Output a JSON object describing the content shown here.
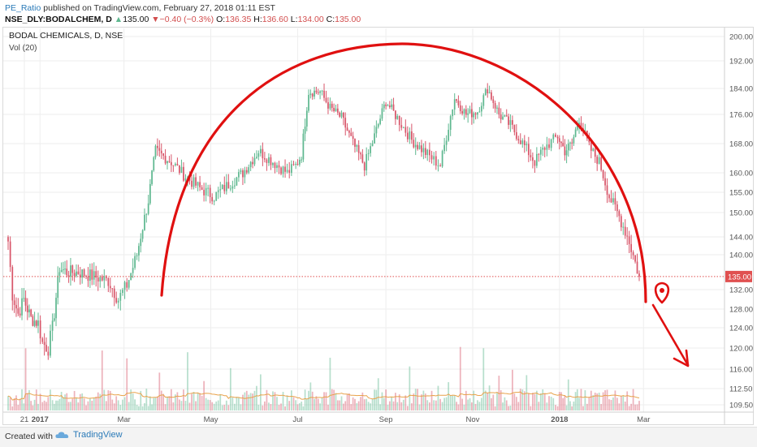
{
  "header": {
    "author": "PE_Ratio",
    "published_text": "published on TradingView.com, February 27, 2018 01:11 EST",
    "symbol": "NSE_DLY:BODALCHEM, D",
    "last": "135.00",
    "change": "−0.40 (−0.3%)",
    "o_label": "O:",
    "o_value": "136.35",
    "h_label": "H:",
    "h_value": "136.60",
    "l_label": "L:",
    "l_value": "134.00",
    "c_label": "C:",
    "c_value": "135.00"
  },
  "footer": {
    "created_with": "Created with",
    "brand": "TradingView"
  },
  "colors": {
    "up": "#5fb890",
    "down": "#d8566a",
    "annotation": "#e01010",
    "price_line": "#e05050",
    "vol_ma": "#e8a24a"
  },
  "chart_data": {
    "type": "candlestick",
    "title": "BODAL CHEMICALS, D, NSE",
    "volume_label": "Vol (20)",
    "y_ticks": [
      "200.00",
      "192.00",
      "184.00",
      "176.00",
      "168.00",
      "160.00",
      "155.00",
      "150.00",
      "144.00",
      "140.00",
      "132.00",
      "128.00",
      "124.00",
      "120.00",
      "116.00",
      "112.50",
      "109.50"
    ],
    "x_ticks": [
      "21",
      "2017",
      "Mar",
      "May",
      "Jul",
      "Sep",
      "Nov",
      "2018",
      "Mar"
    ],
    "last_price_label": "135.00",
    "last_price": 135.0,
    "price_path": [
      [
        "2016-12-12",
        143
      ],
      [
        "2016-12-15",
        131
      ],
      [
        "2016-12-19",
        127
      ],
      [
        "2016-12-23",
        130
      ],
      [
        "2016-12-28",
        126
      ],
      [
        "2017-01-02",
        125
      ],
      [
        "2017-01-05",
        121
      ],
      [
        "2017-01-09",
        120
      ],
      [
        "2017-01-12",
        124
      ],
      [
        "2017-01-17",
        137
      ],
      [
        "2017-01-22",
        136
      ],
      [
        "2017-01-30",
        136
      ],
      [
        "2017-02-10",
        135
      ],
      [
        "2017-02-20",
        134
      ],
      [
        "2017-02-27",
        130
      ],
      [
        "2017-03-05",
        133
      ],
      [
        "2017-03-12",
        140
      ],
      [
        "2017-03-20",
        153
      ],
      [
        "2017-03-25",
        166
      ],
      [
        "2017-04-05",
        163
      ],
      [
        "2017-04-15",
        159
      ],
      [
        "2017-04-25",
        156
      ],
      [
        "2017-05-05",
        154
      ],
      [
        "2017-05-15",
        157
      ],
      [
        "2017-05-25",
        160
      ],
      [
        "2017-06-05",
        166
      ],
      [
        "2017-06-15",
        163
      ],
      [
        "2017-06-25",
        160
      ],
      [
        "2017-07-01",
        162
      ],
      [
        "2017-07-05",
        165
      ],
      [
        "2017-07-10",
        183
      ],
      [
        "2017-07-18",
        183
      ],
      [
        "2017-07-25",
        178
      ],
      [
        "2017-08-02",
        175
      ],
      [
        "2017-08-10",
        168
      ],
      [
        "2017-08-18",
        162
      ],
      [
        "2017-08-25",
        170
      ],
      [
        "2017-09-02",
        180
      ],
      [
        "2017-09-10",
        175
      ],
      [
        "2017-09-20",
        169
      ],
      [
        "2017-10-01",
        165
      ],
      [
        "2017-10-10",
        162
      ],
      [
        "2017-10-20",
        181
      ],
      [
        "2017-10-28",
        176
      ],
      [
        "2017-11-05",
        177
      ],
      [
        "2017-11-12",
        184
      ],
      [
        "2017-11-20",
        176
      ],
      [
        "2017-11-28",
        173
      ],
      [
        "2017-12-05",
        169
      ],
      [
        "2017-12-15",
        163
      ],
      [
        "2017-12-22",
        167
      ],
      [
        "2017-12-31",
        170
      ],
      [
        "2018-01-05",
        166
      ],
      [
        "2018-01-10",
        168
      ],
      [
        "2018-01-15",
        175
      ],
      [
        "2018-01-22",
        167
      ],
      [
        "2018-01-29",
        163
      ],
      [
        "2018-02-05",
        154
      ],
      [
        "2018-02-12",
        149
      ],
      [
        "2018-02-19",
        143
      ],
      [
        "2018-02-26",
        135
      ]
    ],
    "annotations": [
      {
        "type": "arc",
        "description": "rounding top drawn over the price action"
      },
      {
        "type": "arrow",
        "direction": "down"
      },
      {
        "type": "marker",
        "shape": "location-pin"
      }
    ],
    "grid": true
  }
}
